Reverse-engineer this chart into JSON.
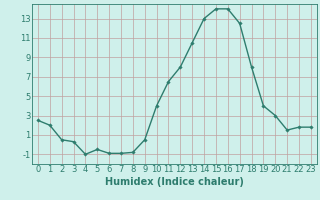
{
  "x": [
    0,
    1,
    2,
    3,
    4,
    5,
    6,
    7,
    8,
    9,
    10,
    11,
    12,
    13,
    14,
    15,
    16,
    17,
    18,
    19,
    20,
    21,
    22,
    23
  ],
  "y": [
    2.5,
    2.0,
    0.5,
    0.3,
    -1.0,
    -0.5,
    -0.9,
    -0.9,
    -0.8,
    0.5,
    4.0,
    6.5,
    8.0,
    10.5,
    13.0,
    14.0,
    14.0,
    12.5,
    8.0,
    4.0,
    3.0,
    1.5,
    1.8,
    1.8
  ],
  "line_color": "#2e7d6e",
  "marker": "D",
  "marker_size": 1.8,
  "bg_color": "#cff0eb",
  "grid_color": "#c0a0a0",
  "xlabel": "Humidex (Indice chaleur)",
  "xlim": [
    -0.5,
    23.5
  ],
  "ylim": [
    -2,
    14.5
  ],
  "yticks": [
    -1,
    1,
    3,
    5,
    7,
    9,
    11,
    13
  ],
  "xticks": [
    0,
    1,
    2,
    3,
    4,
    5,
    6,
    7,
    8,
    9,
    10,
    11,
    12,
    13,
    14,
    15,
    16,
    17,
    18,
    19,
    20,
    21,
    22,
    23
  ],
  "xlabel_fontsize": 7,
  "tick_fontsize": 6,
  "line_width": 1.0
}
